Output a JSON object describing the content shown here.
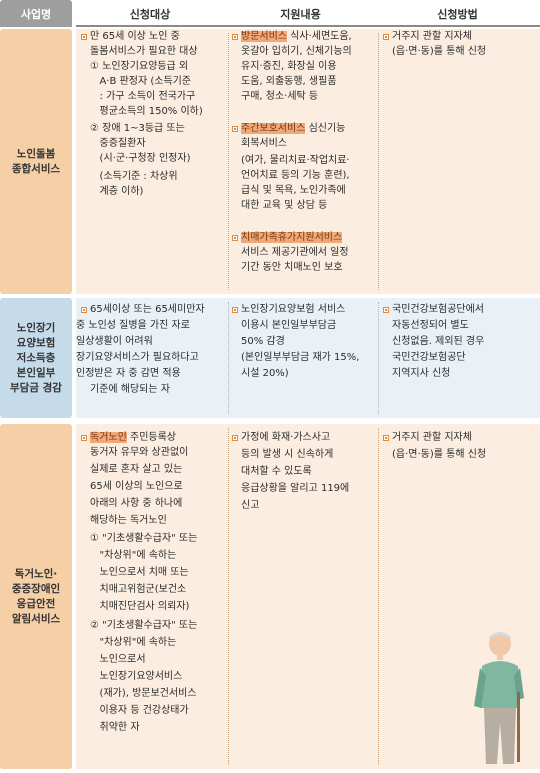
{
  "header": {
    "name": "사업명",
    "col1": "신청대상",
    "col2": "지원내용",
    "col3": "신청방법"
  },
  "colors": {
    "header_gray": "#9e9e9e",
    "s1_bg": "#fbeee0",
    "s1_side": "#f5cfa6",
    "s2_bg": "#e9f1f7",
    "s2_side": "#c6dbea",
    "s3_bg": "#fbeee0",
    "s3_side": "#f5cfa6",
    "bullet": "#e08a3a",
    "highlight": "#f0a878"
  },
  "sections": [
    {
      "name": "노인돌봄\n종합서비스",
      "target": [
        "만 65세 이상 노인 중",
        "돌봄서비스가 필요한 대상",
        "① 노인장기요양등급 외",
        "   A·B 판정자 (소득기준",
        "   : 가구 소득이 전국가구",
        "   평균소득의 150% 이하)",
        "② 장애 1~3등급 또는",
        "   중증질환자",
        "   (시·군·구청장 인정자)",
        "   (소득기준 : 차상위",
        "   계층 이하)"
      ],
      "support": {
        "item1_tag": "방문서비스",
        "item1": [
          " 식사·세면도움,",
          "옷갈아 입히기, 신체기능의",
          "유지·증진, 화장실 이용",
          "도움, 외출동행, 생필품",
          "구매, 청소·세탁 등"
        ],
        "item2_tag": "주간보호서비스",
        "item2": [
          " 심신기능",
          "회복서비스",
          "(여가, 물리치료·작업치료·",
          "언어치료 등의 기능 훈련),",
          "급식 및 목욕, 노인가족에",
          "대한 교육 및 상담 등"
        ],
        "item3_tag": "치매가족휴가지원서비스",
        "item3": [
          "",
          "서비스 제공기관에서 일정",
          "기간 동안 치매노인 보호"
        ]
      },
      "method": [
        "거주지 관할 지자체",
        "(읍·면·동)를 통해 신청"
      ]
    },
    {
      "name": "노인장기\n요양보험\n저소득층\n본인일부\n부담금 경감",
      "target": [
        "65세이상 또는 65세미만자",
        "중 노인성 질병을 가진 자로",
        "일상생활이 어려워",
        "장기요양서비스가 필요하다고",
        "인정받은 자 중 감면 적용",
        "기준에 해당되는 자"
      ],
      "support": [
        "노인장기요양보험 서비스",
        "이용시 본인일부부담금",
        "50% 감경",
        "(본인일부부담금 재가 15%,",
        "시설 20%)"
      ],
      "method": [
        "국민건강보험공단에서",
        "자동선정되어 별도",
        "신청없음. 제외된 경우",
        "국민건강보험공단",
        "지역지사 신청"
      ]
    },
    {
      "name": "독거노인·\n중증장애인\n응급안전\n알림서비스",
      "target_tag": "독거노인",
      "target": [
        " 주민등록상",
        "동거자 유무와 상관없이",
        "실제로 혼자 살고 있는",
        "65세 이상의 노인으로",
        "아래의 사항 중 하나에",
        "해당하는 독거노인",
        "① \"기초생활수급자\" 또는",
        "   \"차상위\"에 속하는",
        "   노인으로서 치매 또는",
        "   치매고위험군(보건소",
        "   치매진단검사 의뢰자)",
        "② \"기초생활수급자\" 또는",
        "   \"차상위\"에 속하는",
        "   노인으로서",
        "   노인장기요양서비스",
        "   (재가), 방문보건서비스",
        "   이용자 등 건강상태가",
        "   취약한 자"
      ],
      "support": [
        "가정에 화재·가스사고",
        "등의 발생 시 신속하게",
        "대처할 수 있도록",
        "응급상황을 알리고 119에",
        "신고"
      ],
      "method": [
        "거주지 관할 지자체",
        "(읍·면·동)를 통해 신청"
      ]
    }
  ]
}
